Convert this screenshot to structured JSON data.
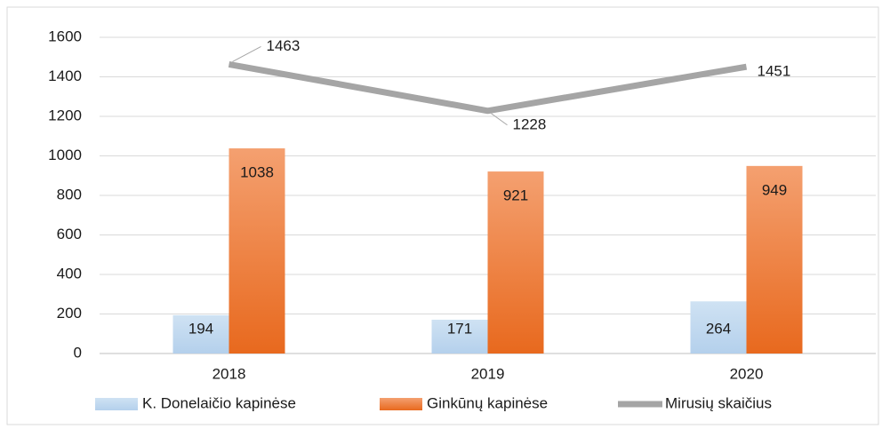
{
  "chart_data": {
    "type": "bar",
    "categories": [
      "2018",
      "2019",
      "2020"
    ],
    "series": [
      {
        "name": "K. Donelaičio kapinėse",
        "color": "#bdd7ee",
        "values": [
          194,
          171,
          264
        ]
      },
      {
        "name": "Ginkūnų kapinėse",
        "color": "#ed7d31",
        "values": [
          1038,
          921,
          949
        ]
      },
      {
        "name": "Mirusių skaičius",
        "color": "#a5a5a5",
        "type": "line",
        "values": [
          1463,
          1228,
          1451
        ]
      }
    ],
    "ylim": [
      0,
      1600
    ],
    "yticks": [
      0,
      200,
      400,
      600,
      800,
      1000,
      1200,
      1400,
      1600
    ],
    "grid": true,
    "legend": "bottom",
    "data_labels": true
  }
}
